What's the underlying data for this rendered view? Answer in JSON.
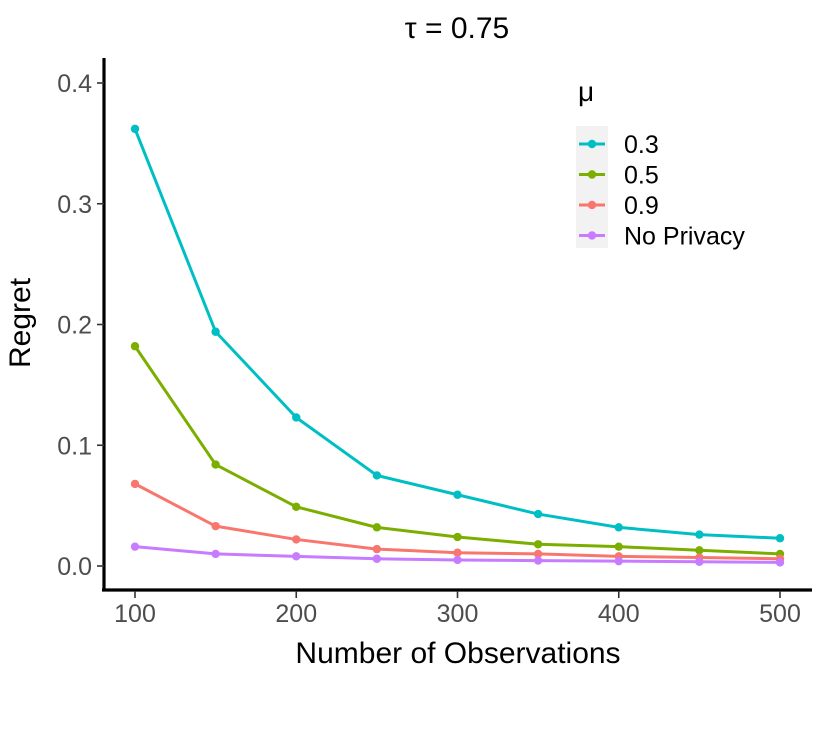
{
  "chart_data": {
    "type": "line",
    "title": "τ = 0.75",
    "xlabel": "Number of Observations",
    "ylabel": "Regret",
    "x": [
      100,
      150,
      200,
      250,
      300,
      350,
      400,
      450,
      500
    ],
    "xlim": [
      100,
      500
    ],
    "ylim": [
      0,
      0.4
    ],
    "xticks": [
      "100",
      "200",
      "300",
      "400",
      "500"
    ],
    "yticks": [
      "0.0",
      "0.1",
      "0.2",
      "0.3",
      "0.4"
    ],
    "grid": false,
    "legend": {
      "title": "μ",
      "placement": "top-right"
    },
    "series": [
      {
        "name": "0.3",
        "color": "#00BFC4",
        "values": [
          0.362,
          0.194,
          0.123,
          0.075,
          0.059,
          0.043,
          0.032,
          0.026,
          0.023
        ]
      },
      {
        "name": "0.5",
        "color": "#7CAE00",
        "values": [
          0.182,
          0.084,
          0.049,
          0.032,
          0.024,
          0.018,
          0.016,
          0.013,
          0.01
        ]
      },
      {
        "name": "0.9",
        "color": "#F8766D",
        "values": [
          0.068,
          0.033,
          0.022,
          0.014,
          0.011,
          0.01,
          0.008,
          0.007,
          0.006
        ]
      },
      {
        "name": "No Privacy",
        "color": "#C77CFF",
        "values": [
          0.016,
          0.01,
          0.008,
          0.006,
          0.005,
          0.0045,
          0.004,
          0.0035,
          0.003
        ]
      }
    ]
  }
}
